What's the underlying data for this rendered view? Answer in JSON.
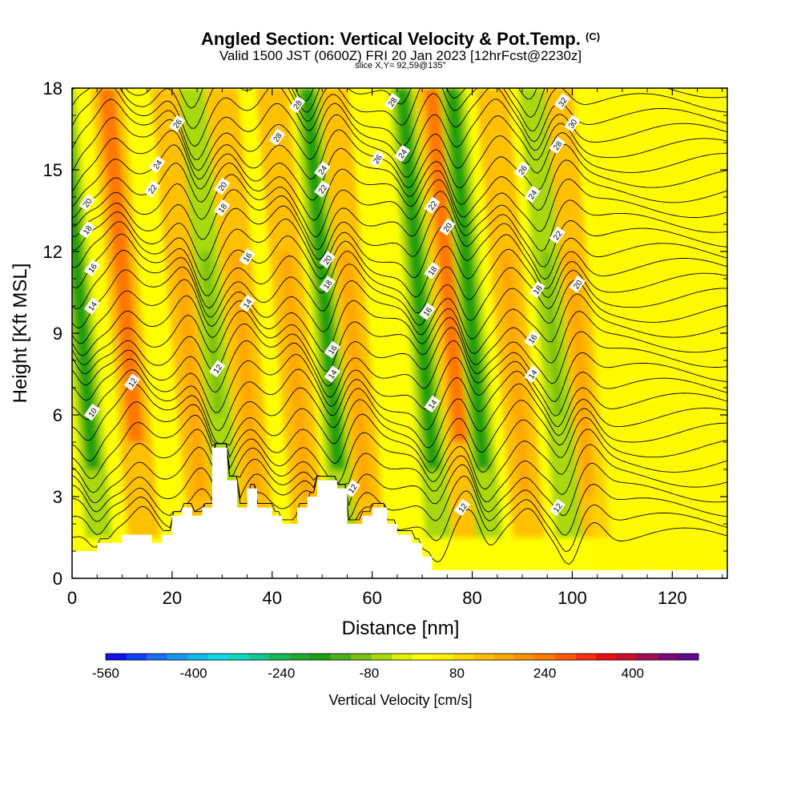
{
  "title": {
    "main": "Angled Section: Vertical Velocity & Pot.Temp.",
    "units_tag": "(C)",
    "valid_line": "Valid 1500 JST (0600Z) FRI 20 Jan 2023 [12hrFcst@2230z]",
    "slice_line": "slice X,Y= 92,59@135°"
  },
  "chart_data": {
    "type": "heatmap",
    "description_of_fields": "shaded vertical velocity with potential temperature contours",
    "xlabel": "Distance [nm]",
    "ylabel": "Height [Kft MSL]",
    "xlim": [
      0,
      131
    ],
    "ylim": [
      0,
      18
    ],
    "x_ticks": [
      0,
      20,
      40,
      60,
      80,
      100,
      120
    ],
    "y_ticks": [
      0,
      3,
      6,
      9,
      12,
      15,
      18
    ],
    "colorbar": {
      "label": "Vertical Velocity [cm/s]",
      "tick_labels": [
        "-560",
        "-400",
        "-240",
        "-80",
        "80",
        "240",
        "400"
      ],
      "tick_values": [
        -560,
        -400,
        -240,
        -80,
        80,
        240,
        400
      ],
      "range": [
        -560,
        520
      ],
      "step": 40,
      "colors": [
        "#1010f0",
        "#1040f8",
        "#1870f8",
        "#1898f0",
        "#10b8f0",
        "#10d8e8",
        "#10d8c0",
        "#10c890",
        "#18b858",
        "#20a830",
        "#20a010",
        "#48b018",
        "#78c010",
        "#a8d808",
        "#e0f000",
        "#ffff00",
        "#fff000",
        "#ffd800",
        "#ffc000",
        "#ffa800",
        "#ff9000",
        "#ff7800",
        "#ff5800",
        "#f83010",
        "#e81010",
        "#c81028",
        "#a01050",
        "#800878",
        "#600890"
      ]
    },
    "updraft_bands_x_nm": [
      11,
      23,
      34,
      44,
      56,
      76,
      88,
      101
    ],
    "downdraft_bands_x_nm": [
      2,
      28,
      51,
      70,
      80,
      96
    ],
    "contour_labels": [
      {
        "x": 3,
        "y": 13.8,
        "label": "20"
      },
      {
        "x": 3,
        "y": 12.8,
        "label": "18"
      },
      {
        "x": 4,
        "y": 11.4,
        "label": "16"
      },
      {
        "x": 4,
        "y": 10.0,
        "label": "14"
      },
      {
        "x": 12,
        "y": 7.2,
        "label": "12"
      },
      {
        "x": 4,
        "y": 6.1,
        "label": "10"
      },
      {
        "x": 21,
        "y": 16.7,
        "label": "26"
      },
      {
        "x": 17,
        "y": 15.2,
        "label": "24"
      },
      {
        "x": 16,
        "y": 14.3,
        "label": "22"
      },
      {
        "x": 30,
        "y": 14.4,
        "label": "20"
      },
      {
        "x": 30,
        "y": 13.6,
        "label": "18"
      },
      {
        "x": 35,
        "y": 11.8,
        "label": "16"
      },
      {
        "x": 35,
        "y": 10.1,
        "label": "14"
      },
      {
        "x": 29,
        "y": 7.7,
        "label": "12"
      },
      {
        "x": 45,
        "y": 17.4,
        "label": "28"
      },
      {
        "x": 41,
        "y": 16.2,
        "label": "28"
      },
      {
        "x": 50,
        "y": 15.0,
        "label": "24"
      },
      {
        "x": 50,
        "y": 14.3,
        "label": "22"
      },
      {
        "x": 51,
        "y": 11.7,
        "label": "20"
      },
      {
        "x": 51,
        "y": 10.8,
        "label": "18"
      },
      {
        "x": 52,
        "y": 8.4,
        "label": "16"
      },
      {
        "x": 52,
        "y": 7.5,
        "label": "14"
      },
      {
        "x": 56,
        "y": 3.3,
        "label": "12"
      },
      {
        "x": 64,
        "y": 17.5,
        "label": "28"
      },
      {
        "x": 61,
        "y": 15.4,
        "label": "26"
      },
      {
        "x": 66,
        "y": 15.6,
        "label": "24"
      },
      {
        "x": 72,
        "y": 13.7,
        "label": "22"
      },
      {
        "x": 75,
        "y": 12.9,
        "label": "20"
      },
      {
        "x": 72,
        "y": 11.3,
        "label": "18"
      },
      {
        "x": 71,
        "y": 9.8,
        "label": "16"
      },
      {
        "x": 72,
        "y": 6.4,
        "label": "14"
      },
      {
        "x": 78,
        "y": 2.6,
        "label": "12"
      },
      {
        "x": 98,
        "y": 17.5,
        "label": "32"
      },
      {
        "x": 100,
        "y": 16.7,
        "label": "30"
      },
      {
        "x": 97,
        "y": 15.9,
        "label": "28"
      },
      {
        "x": 90,
        "y": 15.0,
        "label": "26"
      },
      {
        "x": 92,
        "y": 14.1,
        "label": "24"
      },
      {
        "x": 97,
        "y": 12.6,
        "label": "22"
      },
      {
        "x": 101,
        "y": 10.8,
        "label": "20"
      },
      {
        "x": 93,
        "y": 10.6,
        "label": "18"
      },
      {
        "x": 92,
        "y": 8.8,
        "label": "16"
      },
      {
        "x": 92,
        "y": 7.5,
        "label": "14"
      },
      {
        "x": 97,
        "y": 2.6,
        "label": "12"
      }
    ]
  }
}
